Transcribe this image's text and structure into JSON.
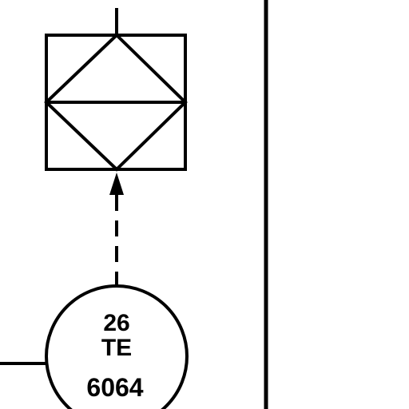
{
  "instrument": {
    "tag_number": "26",
    "function": "TE",
    "loop_number": "6064"
  },
  "colors": {
    "line": "#000000",
    "background": "#ffffff"
  }
}
